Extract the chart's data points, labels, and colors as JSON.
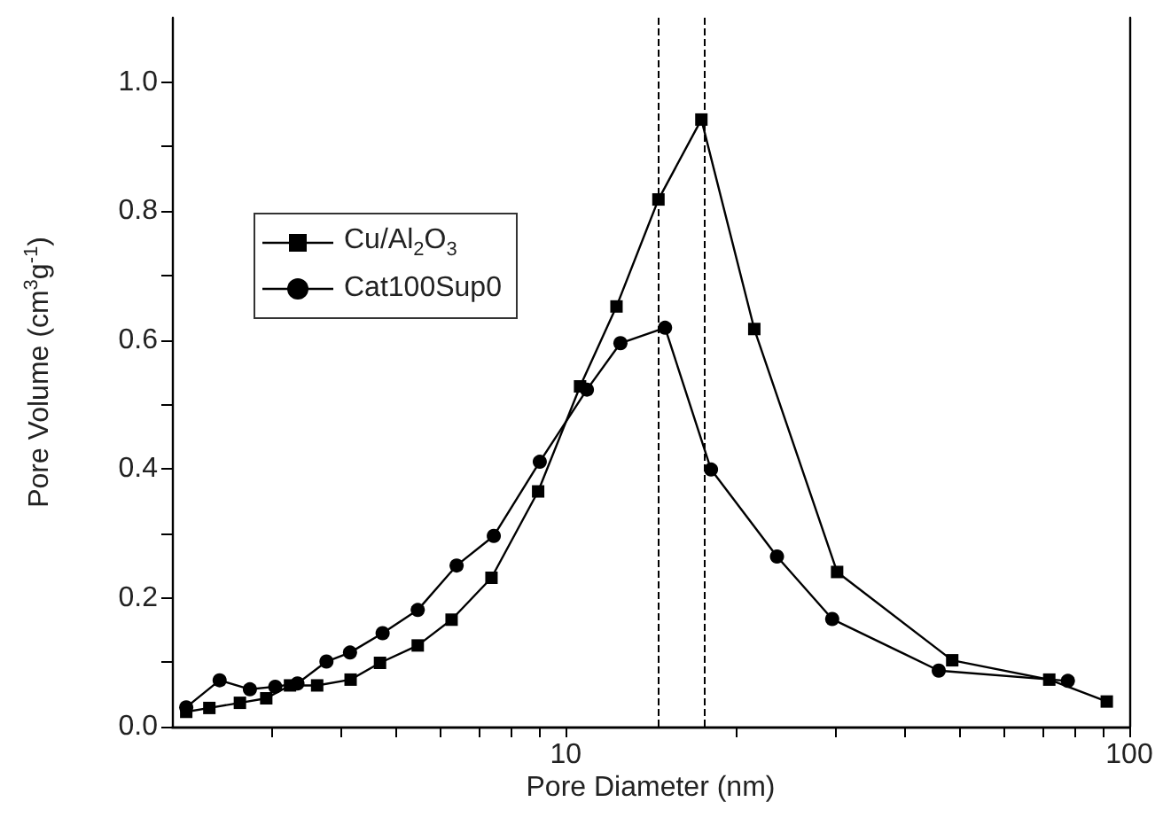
{
  "chart_data": {
    "type": "line",
    "xlabel": "Pore Diameter (nm)",
    "ylabel": "Pore Volume (cm$^{3}$g$^{-1}$)",
    "log": "x",
    "xlim": [
      2,
      100
    ],
    "xticks": [
      {
        "value": 3,
        "label": null
      },
      {
        "value": 4,
        "label": null
      },
      {
        "value": 5,
        "label": null
      },
      {
        "value": 6,
        "label": null
      },
      {
        "value": 7,
        "label": null
      },
      {
        "value": 8,
        "label": null
      },
      {
        "value": 9,
        "label": null
      },
      10,
      {
        "value": 20,
        "label": null
      },
      {
        "value": 30,
        "label": null
      },
      {
        "value": 40,
        "label": null
      },
      {
        "value": 50,
        "label": null
      },
      {
        "value": 60,
        "label": null
      },
      {
        "value": 70,
        "label": null
      },
      {
        "value": 80,
        "label": null
      },
      {
        "value": 90,
        "label": null
      },
      100
    ],
    "ylim": [
      0,
      1.1
    ],
    "yticks": [
      {
        "value": 0,
        "label": "0.0"
      },
      {
        "value": 0.1,
        "label": null
      },
      {
        "value": 0.2,
        "label": "0.2"
      },
      {
        "value": 0.3,
        "label": null
      },
      {
        "value": 0.4,
        "label": "0.4"
      },
      {
        "value": 0.5,
        "label": null
      },
      {
        "value": 0.6,
        "label": "0.6"
      },
      {
        "value": 0.7,
        "label": null
      },
      {
        "value": 0.8,
        "label": "0.8"
      },
      {
        "value": 0.9,
        "label": null
      },
      {
        "value": 1.0,
        "label": "1.0"
      }
    ],
    "grid": false,
    "legend": "left",
    "line_style": "solid",
    "series": [
      {
        "name": "Cu/Al$_{2}$O$_{3}$",
        "color": "#000000",
        "marker": "square",
        "x": [
          2.12,
          2.33,
          2.64,
          2.94,
          3.24,
          3.62,
          4.15,
          4.68,
          5.46,
          6.27,
          7.38,
          8.93,
          10.6,
          12.3,
          14.6,
          17.4,
          21.6,
          30.3,
          48.5,
          72.1,
          91.2
        ],
        "values": [
          0.023,
          0.029,
          0.037,
          0.044,
          0.064,
          0.064,
          0.073,
          0.099,
          0.126,
          0.166,
          0.231,
          0.365,
          0.528,
          0.652,
          0.818,
          0.942,
          0.617,
          0.24,
          0.103,
          0.073,
          0.039
        ]
      },
      {
        "name": "Cat100Sup0",
        "color": "#000000",
        "marker": "circle",
        "x": [
          2.12,
          2.43,
          2.75,
          3.05,
          3.34,
          3.76,
          4.14,
          4.73,
          5.46,
          6.4,
          7.45,
          8.99,
          10.9,
          12.5,
          15.0,
          18.1,
          23.7,
          29.7,
          45.9,
          77.8
        ],
        "values": [
          0.03,
          0.072,
          0.058,
          0.062,
          0.067,
          0.101,
          0.115,
          0.145,
          0.181,
          0.25,
          0.296,
          0.411,
          0.523,
          0.595,
          0.619,
          0.399,
          0.264,
          0.167,
          0.087,
          0.071
        ]
      }
    ],
    "ref_lines": [
      {
        "axis": "x",
        "value": 14.6,
        "label": null,
        "color": "#000000",
        "line_style": "dashed"
      },
      {
        "axis": "x",
        "value": 17.6,
        "label": null,
        "color": "#000000",
        "line_style": "dashed"
      }
    ]
  }
}
